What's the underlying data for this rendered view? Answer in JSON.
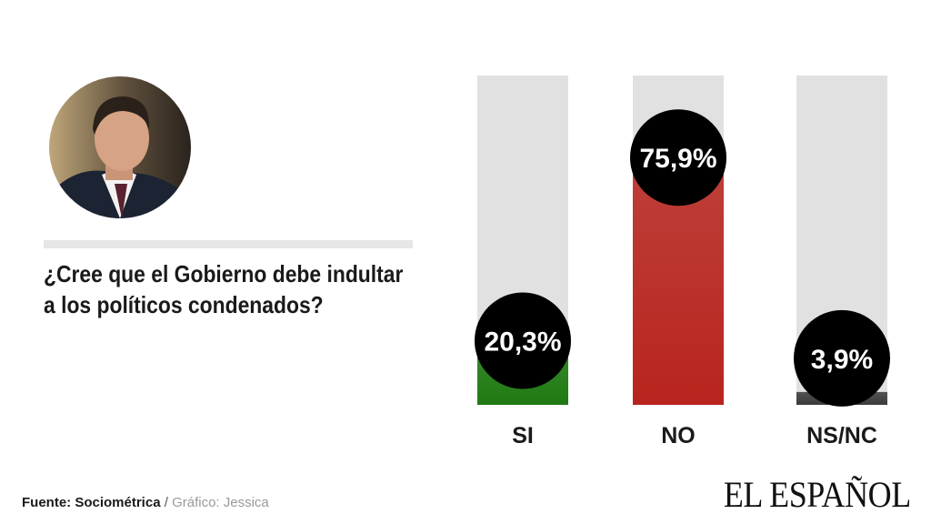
{
  "question": "¿Cree que el Gobierno debe indultar a los políticos condenados?",
  "source": {
    "label": "Fuente: Sociométrica",
    "separator": " / ",
    "credit": "Gráfico: Jessica"
  },
  "brand": "EL ESPAÑOL",
  "chart_data": {
    "type": "bar",
    "title": "",
    "categories": [
      "SI",
      "NO",
      "NS/NC"
    ],
    "values": [
      20.3,
      75.9,
      3.9
    ],
    "value_labels": [
      "20,3%",
      "75,9%",
      "3,9%"
    ],
    "ylim": [
      0,
      100
    ],
    "colors": [
      "#1f7a12",
      "#b8241d",
      "#3a3a3a"
    ],
    "track_color": "#e1e1e1",
    "label_bubble_color": "#000000",
    "grid": false,
    "legend": "none"
  }
}
